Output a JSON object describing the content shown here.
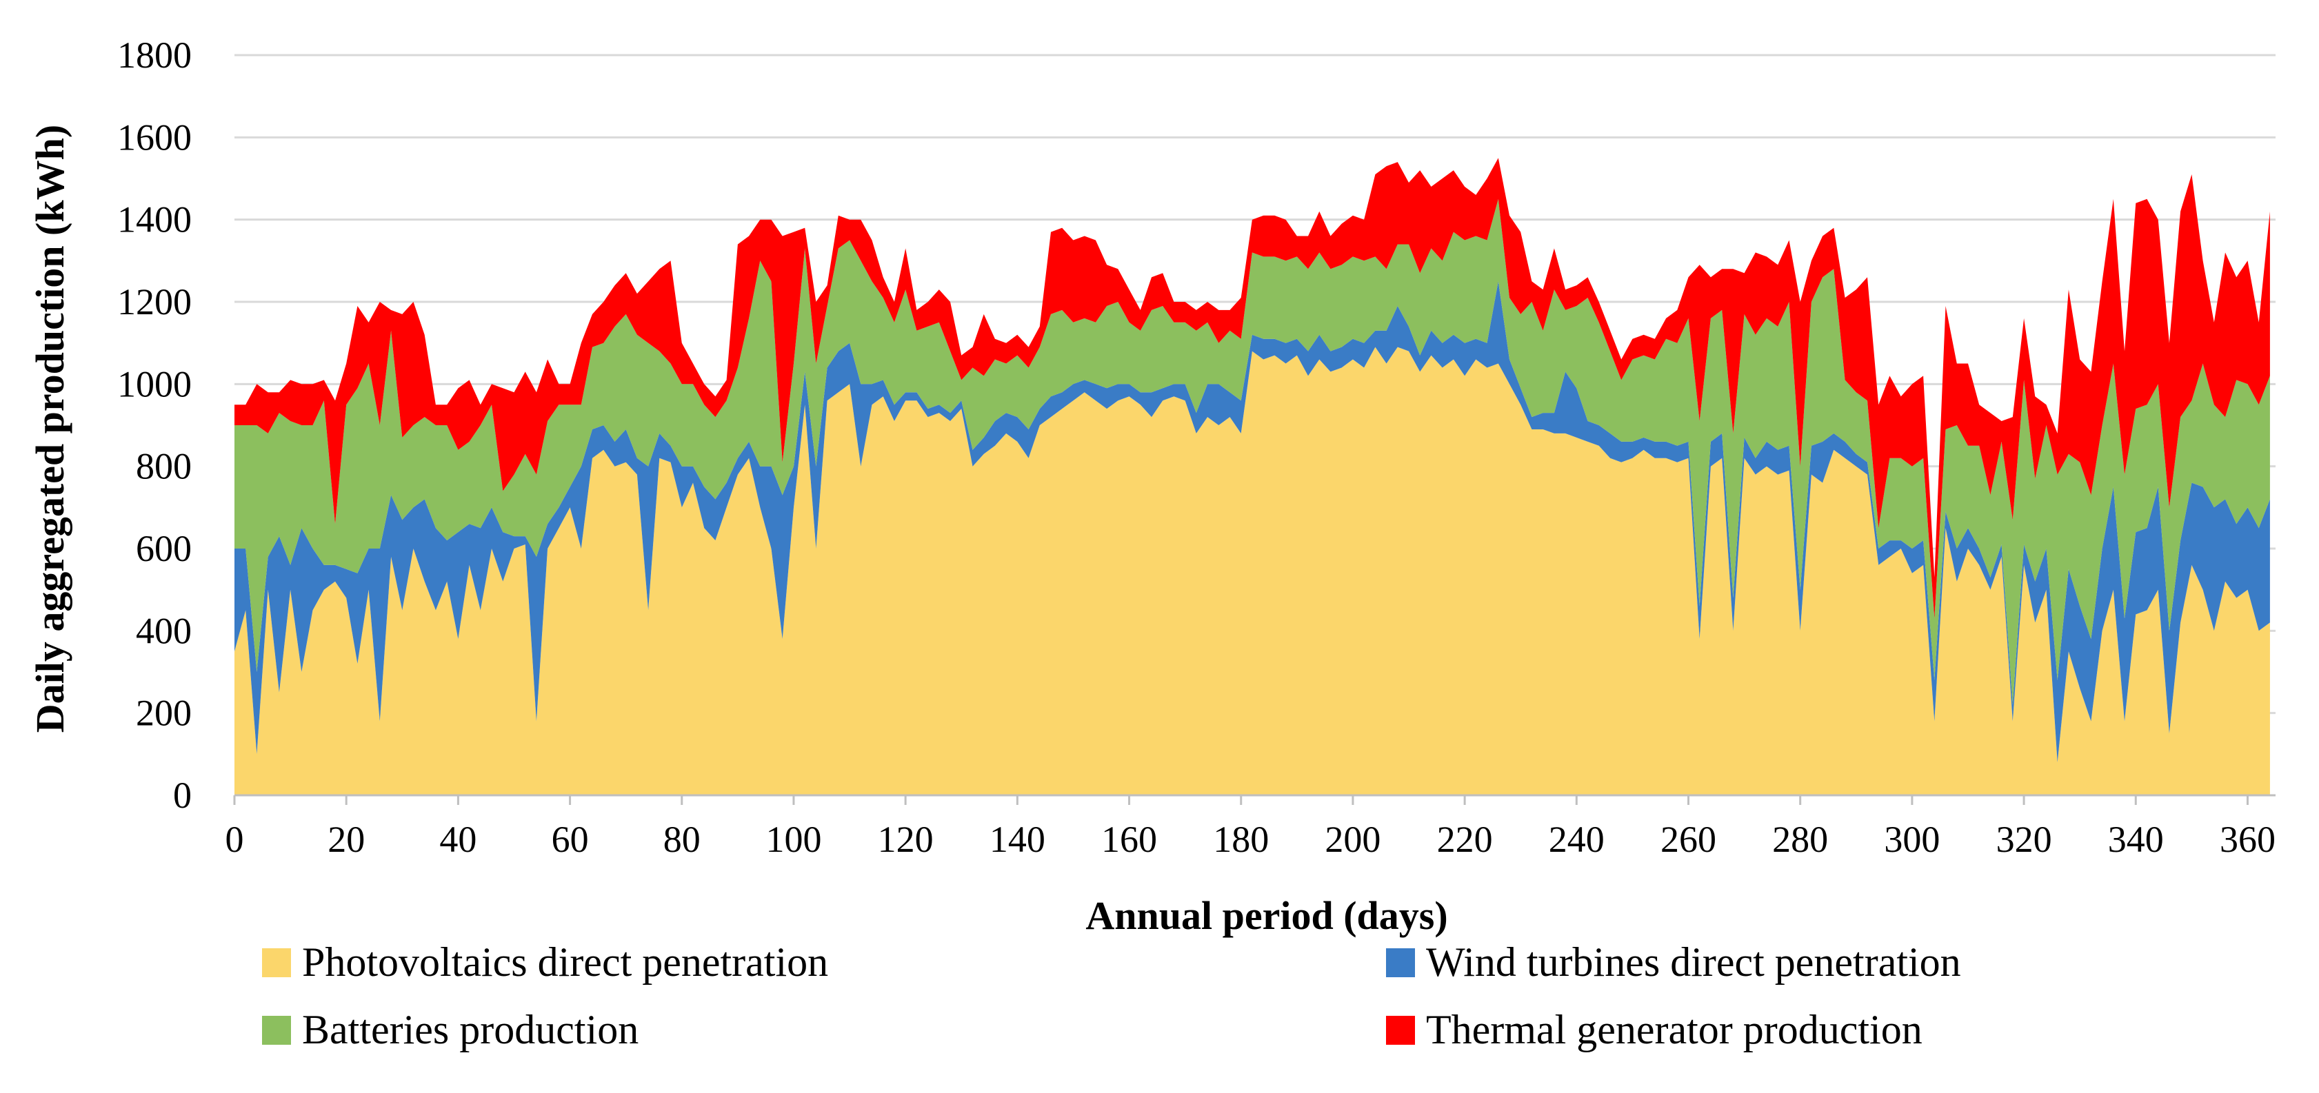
{
  "chart_data": {
    "type": "area",
    "stacked": true,
    "title": "",
    "xlabel": "Annual period (days)",
    "ylabel": "Daily aggregated production (kWh)",
    "xlim": [
      0,
      365
    ],
    "ylim": [
      0,
      1800
    ],
    "xticks": [
      0,
      20,
      40,
      60,
      80,
      100,
      120,
      140,
      160,
      180,
      200,
      220,
      240,
      260,
      280,
      300,
      320,
      340,
      360
    ],
    "yticks": [
      0,
      200,
      400,
      600,
      800,
      1000,
      1200,
      1400,
      1600,
      1800
    ],
    "grid": true,
    "legend_position": "bottom",
    "colors": {
      "pv": "#fbd66b",
      "wind": "#3a7cc6",
      "battery": "#8cbf5e",
      "thermal": "#ff0000",
      "grid": "#d9d9d9",
      "axis": "#bfbfbf"
    },
    "x": [
      0,
      2,
      4,
      6,
      8,
      10,
      12,
      14,
      16,
      18,
      20,
      22,
      24,
      26,
      28,
      30,
      32,
      34,
      36,
      38,
      40,
      42,
      44,
      46,
      48,
      50,
      52,
      54,
      56,
      58,
      60,
      62,
      64,
      66,
      68,
      70,
      72,
      74,
      76,
      78,
      80,
      82,
      84,
      86,
      88,
      90,
      92,
      94,
      96,
      98,
      100,
      102,
      104,
      106,
      108,
      110,
      112,
      114,
      116,
      118,
      120,
      122,
      124,
      126,
      128,
      130,
      132,
      134,
      136,
      138,
      140,
      142,
      144,
      146,
      148,
      150,
      152,
      154,
      156,
      158,
      160,
      162,
      164,
      166,
      168,
      170,
      172,
      174,
      176,
      178,
      180,
      182,
      184,
      186,
      188,
      190,
      192,
      194,
      196,
      198,
      200,
      202,
      204,
      206,
      208,
      210,
      212,
      214,
      216,
      218,
      220,
      222,
      224,
      226,
      228,
      230,
      232,
      234,
      236,
      238,
      240,
      242,
      244,
      246,
      248,
      250,
      252,
      254,
      256,
      258,
      260,
      262,
      264,
      266,
      268,
      270,
      272,
      274,
      276,
      278,
      280,
      282,
      284,
      286,
      288,
      290,
      292,
      294,
      296,
      298,
      300,
      302,
      304,
      306,
      308,
      310,
      312,
      314,
      316,
      318,
      320,
      322,
      324,
      326,
      328,
      330,
      332,
      334,
      336,
      338,
      340,
      342,
      344,
      346,
      348,
      350,
      352,
      354,
      356,
      358,
      360,
      362,
      364
    ],
    "series": [
      {
        "name": "Photovoltaics direct penetration",
        "values": [
          350,
          450,
          100,
          500,
          250,
          500,
          300,
          450,
          500,
          520,
          480,
          320,
          500,
          180,
          580,
          450,
          600,
          520,
          450,
          520,
          380,
          560,
          450,
          600,
          520,
          600,
          610,
          180,
          600,
          650,
          700,
          600,
          820,
          840,
          800,
          810,
          780,
          450,
          820,
          810,
          700,
          760,
          650,
          620,
          700,
          780,
          820,
          700,
          600,
          380,
          700,
          950,
          600,
          960,
          980,
          1000,
          800,
          950,
          970,
          910,
          960,
          960,
          920,
          930,
          910,
          940,
          800,
          830,
          850,
          880,
          860,
          820,
          900,
          920,
          940,
          960,
          980,
          960,
          940,
          960,
          970,
          950,
          920,
          960,
          970,
          960,
          880,
          920,
          900,
          920,
          880,
          1080,
          1060,
          1070,
          1050,
          1070,
          1020,
          1060,
          1030,
          1040,
          1060,
          1040,
          1090,
          1050,
          1090,
          1080,
          1030,
          1070,
          1040,
          1060,
          1020,
          1060,
          1040,
          1050,
          1000,
          950,
          890,
          890,
          880,
          880,
          870,
          860,
          850,
          820,
          810,
          820,
          840,
          820,
          820,
          810,
          820,
          380,
          800,
          820,
          400,
          820,
          780,
          800,
          780,
          790,
          400,
          780,
          760,
          840,
          820,
          800,
          780,
          560,
          580,
          600,
          540,
          560,
          180,
          650,
          520,
          600,
          560,
          500,
          580,
          180,
          560,
          420,
          500,
          80,
          350,
          260,
          180,
          400,
          500,
          180,
          440,
          450,
          500,
          150,
          420,
          560,
          500,
          400,
          520,
          480,
          500,
          400,
          420
        ]
      },
      {
        "name": "Wind turbines direct penetration",
        "values": [
          250,
          150,
          200,
          80,
          380,
          60,
          350,
          150,
          60,
          40,
          70,
          220,
          100,
          420,
          150,
          220,
          100,
          200,
          200,
          100,
          260,
          100,
          200,
          100,
          120,
          30,
          20,
          400,
          60,
          50,
          50,
          200,
          70,
          60,
          60,
          80,
          40,
          350,
          60,
          40,
          100,
          40,
          100,
          100,
          60,
          40,
          40,
          100,
          200,
          350,
          100,
          80,
          200,
          80,
          100,
          100,
          200,
          50,
          40,
          40,
          20,
          20,
          20,
          20,
          20,
          20,
          40,
          40,
          60,
          50,
          60,
          70,
          40,
          50,
          40,
          40,
          30,
          40,
          50,
          40,
          30,
          30,
          60,
          30,
          30,
          40,
          50,
          80,
          100,
          60,
          80,
          40,
          50,
          40,
          50,
          40,
          60,
          60,
          50,
          50,
          50,
          60,
          40,
          80,
          100,
          60,
          40,
          60,
          60,
          60,
          80,
          50,
          60,
          200,
          60,
          40,
          30,
          40,
          50,
          150,
          120,
          50,
          50,
          60,
          50,
          40,
          30,
          40,
          40,
          40,
          40,
          80,
          60,
          60,
          80,
          50,
          40,
          60,
          60,
          60,
          100,
          70,
          100,
          40,
          40,
          30,
          30,
          40,
          40,
          20,
          60,
          60,
          100,
          40,
          80,
          50,
          40,
          30,
          30,
          40,
          50,
          100,
          100,
          200,
          200,
          200,
          200,
          200,
          250,
          250,
          200,
          200,
          250,
          250,
          200,
          200,
          250,
          300,
          200,
          180,
          200,
          250,
          300
        ]
      },
      {
        "name": "Batteries production",
        "values": [
          300,
          300,
          600,
          300,
          300,
          350,
          250,
          300,
          400,
          100,
          400,
          450,
          450,
          300,
          400,
          200,
          200,
          200,
          250,
          280,
          200,
          200,
          250,
          250,
          100,
          150,
          200,
          200,
          250,
          250,
          200,
          150,
          200,
          200,
          280,
          280,
          300,
          300,
          200,
          200,
          200,
          200,
          200,
          200,
          200,
          220,
          300,
          500,
          450,
          80,
          250,
          300,
          250,
          150,
          250,
          250,
          300,
          250,
          200,
          200,
          250,
          150,
          200,
          200,
          150,
          50,
          200,
          150,
          150,
          120,
          150,
          150,
          150,
          200,
          200,
          150,
          150,
          150,
          200,
          200,
          150,
          150,
          200,
          200,
          150,
          150,
          200,
          150,
          100,
          150,
          150,
          200,
          200,
          200,
          200,
          200,
          200,
          200,
          200,
          200,
          200,
          200,
          180,
          150,
          150,
          200,
          200,
          200,
          200,
          250,
          250,
          250,
          250,
          200,
          150,
          180,
          280,
          200,
          300,
          150,
          200,
          300,
          250,
          200,
          150,
          200,
          200,
          200,
          250,
          250,
          300,
          450,
          300,
          300,
          400,
          300,
          300,
          300,
          300,
          350,
          300,
          350,
          400,
          400,
          150,
          150,
          150,
          50,
          200,
          200,
          200,
          200,
          150,
          200,
          300,
          200,
          250,
          200,
          250,
          450,
          400,
          250,
          300,
          500,
          280,
          350,
          350,
          300,
          300,
          350,
          300,
          300,
          250,
          300,
          300,
          200,
          300,
          250,
          200,
          350,
          300,
          300,
          300
        ]
      },
      {
        "name": "Thermal generator production",
        "values": [
          50,
          50,
          100,
          100,
          50,
          100,
          100,
          100,
          50,
          300,
          100,
          200,
          100,
          300,
          50,
          300,
          300,
          200,
          50,
          50,
          150,
          150,
          50,
          50,
          250,
          200,
          200,
          200,
          150,
          50,
          50,
          150,
          80,
          100,
          100,
          100,
          100,
          150,
          200,
          250,
          100,
          50,
          50,
          50,
          50,
          300,
          200,
          100,
          150,
          550,
          320,
          50,
          150,
          50,
          80,
          50,
          100,
          100,
          50,
          50,
          100,
          50,
          60,
          80,
          120,
          60,
          50,
          150,
          50,
          50,
          50,
          50,
          50,
          200,
          200,
          200,
          200,
          200,
          100,
          80,
          80,
          50,
          80,
          80,
          50,
          50,
          50,
          50,
          80,
          50,
          100,
          80,
          100,
          100,
          100,
          50,
          80,
          100,
          80,
          100,
          100,
          100,
          200,
          250,
          200,
          150,
          250,
          150,
          200,
          150,
          130,
          100,
          150,
          100,
          200,
          200,
          50,
          100,
          100,
          50,
          50,
          50,
          50,
          50,
          50,
          50,
          50,
          50,
          50,
          80,
          100,
          380,
          100,
          100,
          400,
          100,
          200,
          150,
          150,
          150,
          400,
          100,
          100,
          100,
          200,
          250,
          300,
          300,
          200,
          150,
          200,
          200,
          100,
          300,
          150,
          200,
          100,
          200,
          50,
          250,
          150,
          200,
          50,
          100,
          400,
          250,
          300,
          350,
          400,
          300,
          500,
          500,
          400,
          400,
          500,
          550,
          250,
          200,
          400,
          250,
          300,
          200,
          400
        ]
      }
    ]
  }
}
